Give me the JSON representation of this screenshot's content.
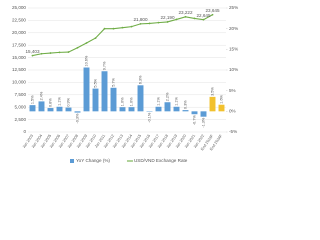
{
  "chart_data": {
    "type": "bar-line",
    "categories": [
      "Jan 2003",
      "Jan 2004",
      "Jan 2005",
      "Jan 2006",
      "Jan 2007",
      "Jan 2008",
      "Jan 2009",
      "Jan 2010",
      "Jan 2011",
      "Jan 2012",
      "Jan 2013",
      "Jan 2014",
      "Jan 2015",
      "Jan 2016",
      "Jan 2017",
      "Jan 2018",
      "Jan 2019",
      "Jan 2020",
      "Jan 2021",
      "Jan 2022",
      "End 2023F",
      "End 2024F"
    ],
    "series": [
      {
        "name": "YoY Change (%)",
        "type": "bar",
        "axis": "y2",
        "color": "#5b9bd5",
        "colors": [
          "#5b9bd5",
          "#5b9bd5",
          "#5b9bd5",
          "#5b9bd5",
          "#5b9bd5",
          "#5b9bd5",
          "#5b9bd5",
          "#5b9bd5",
          "#5b9bd5",
          "#5b9bd5",
          "#5b9bd5",
          "#5b9bd5",
          "#5b9bd5",
          "#5b9bd5",
          "#5b9bd5",
          "#5b9bd5",
          "#5b9bd5",
          "#5b9bd5",
          "#5b9bd5",
          "#5b9bd5",
          "#f2c12e",
          "#f2c12e"
        ],
        "values": [
          1.5,
          2.4,
          0.8,
          1.1,
          0.9,
          -0.3,
          10.6,
          5.5,
          9.7,
          5.7,
          1.0,
          1.0,
          6.3,
          -0.1,
          1.1,
          2.2,
          1.1,
          0.3,
          -0.7,
          -1.3,
          3.5,
          1.6
        ],
        "value_labels": [
          "1.5%",
          "2.4%",
          "0.8%",
          "1.1%",
          "0.9%",
          "-0.3%",
          "10.6%",
          "5.5%",
          "9.7%",
          "5.7%",
          "1.0%",
          "1.0%",
          "6.3%",
          "-0.1%",
          "1.1%",
          "2.2%",
          "1.1%",
          "0.3%",
          "-0.7%",
          "-1.3%",
          "3.5%",
          "1.6%"
        ]
      },
      {
        "name": "USD/VND Exchange Rate",
        "type": "line",
        "color": "#70ad47",
        "values": [
          15403,
          15777,
          15916,
          16054,
          16114,
          16977,
          17941,
          18932,
          20828,
          20828,
          21036,
          21246,
          21800,
          21890,
          22050,
          22190,
          22698,
          23222,
          22900,
          22645,
          23645,
          null
        ],
        "value_labels": [
          "15,403",
          null,
          null,
          null,
          null,
          null,
          null,
          null,
          null,
          null,
          null,
          null,
          "21,800",
          null,
          null,
          "22,190",
          null,
          "23,222",
          null,
          "22,645",
          "23,645",
          null
        ]
      }
    ],
    "ylim": [
      0,
      25000
    ],
    "yticks": [
      {
        "value": 0,
        "label": "0"
      },
      {
        "value": 2500,
        "label": "2,500"
      },
      {
        "value": 5000,
        "label": "5,000"
      },
      {
        "value": 7500,
        "label": "7,500"
      },
      {
        "value": 10000,
        "label": "10,000"
      },
      {
        "value": 12500,
        "label": "12,500"
      },
      {
        "value": 15000,
        "label": "15,000"
      },
      {
        "value": 17500,
        "label": "17,500"
      },
      {
        "value": 20000,
        "label": "20,000"
      },
      {
        "value": 22500,
        "label": "22,500"
      },
      {
        "value": 25000,
        "label": "25,000"
      }
    ],
    "y2lim": [
      -5,
      25
    ],
    "y2ticks": [
      {
        "value": -5,
        "label": "-5%"
      },
      {
        "value": 0,
        "label": "0%"
      },
      {
        "value": 5,
        "label": "5%"
      },
      {
        "value": 10,
        "label": "10%"
      },
      {
        "value": 15,
        "label": "15%"
      },
      {
        "value": 20,
        "label": "20%"
      },
      {
        "value": 25,
        "label": "25%"
      }
    ],
    "grid": true,
    "legend": "bottom"
  }
}
